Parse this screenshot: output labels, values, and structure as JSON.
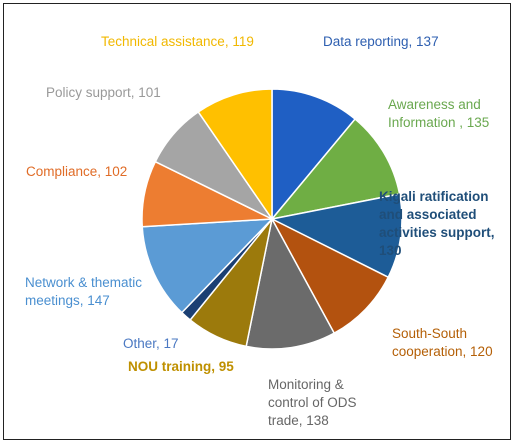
{
  "chart_data": {
    "type": "pie",
    "title": "",
    "slices": [
      {
        "label": "Data reporting, 137",
        "value": 137,
        "color": "#1f5fc4"
      },
      {
        "label": "Awareness and\nInformation , 135",
        "value": 135,
        "color": "#6fae44"
      },
      {
        "label": "Kigali ratification\nand associated\nactivities support,\n130",
        "value": 130,
        "color": "#1d5c97"
      },
      {
        "label": "South-South\ncooperation, 120",
        "value": 120,
        "color": "#b3520f"
      },
      {
        "label": "Monitoring &\ncontrol of ODS\ntrade, 138",
        "value": 138,
        "color": "#6b6b6b"
      },
      {
        "label": "NOU training, 95",
        "value": 95,
        "color": "#9c7a0c"
      },
      {
        "label": "Other, 17",
        "value": 17,
        "color": "#1b3f73"
      },
      {
        "label": "Network & thematic\nmeetings, 147",
        "value": 147,
        "color": "#5b9bd5"
      },
      {
        "label": "Compliance, 102",
        "value": 102,
        "color": "#ed7d31"
      },
      {
        "label": "Policy support, 101",
        "value": 101,
        "color": "#a5a5a5"
      },
      {
        "label": "Technical assistance, 119",
        "value": 119,
        "color": "#ffc000"
      }
    ],
    "label_colors": [
      "#2e5fb0",
      "#6aa84f",
      "#1f4e79",
      "#b45f06",
      "#666666",
      "#bf9000",
      "#4a78c2",
      "#4a8fd0",
      "#e06c27",
      "#999999",
      "#f1b800"
    ]
  }
}
